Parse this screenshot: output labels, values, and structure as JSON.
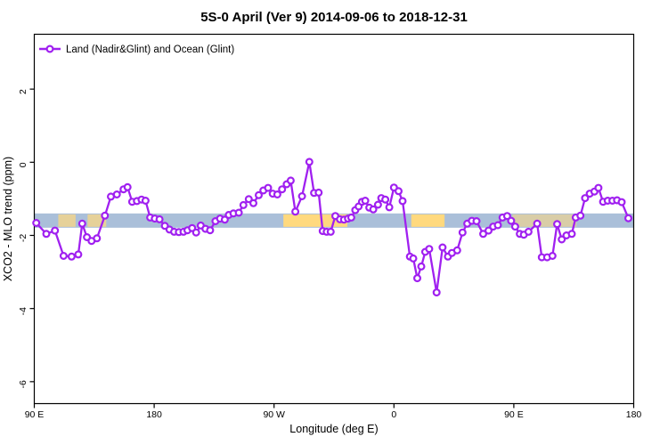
{
  "chart_data": {
    "type": "line",
    "title": "5S-0 April (Ver 9)   2014-09-06 to 2018-12-31",
    "xlabel": "Longitude (deg E)",
    "ylabel": "XCO2 - MLO trend (ppm)",
    "xlim": [
      90,
      540
    ],
    "ylim": [
      -6.6,
      3.5
    ],
    "grid": false,
    "legend_position": "top-left-inside",
    "x_ticks": [
      {
        "value": 90,
        "label": "90 E"
      },
      {
        "value": 180,
        "label": "180"
      },
      {
        "value": 270,
        "label": "90 W"
      },
      {
        "value": 360,
        "label": "0"
      },
      {
        "value": 450,
        "label": "90 E"
      },
      {
        "value": 540,
        "label": "180"
      }
    ],
    "y_ticks": [
      {
        "value": 2,
        "label": "2"
      },
      {
        "value": 0,
        "label": "0"
      },
      {
        "value": -2,
        "label": "-2"
      },
      {
        "value": -4,
        "label": "-4"
      },
      {
        "value": -6,
        "label": "-6"
      }
    ],
    "colors": {
      "series": "#A020F0",
      "marker_fill": "#FFFFFF",
      "band_ocean": "#AABFD9",
      "band_land": "#FFD97E",
      "axis": "#000000"
    },
    "background_band": {
      "note": "horizontal reference band near y = -1.4 to -1.8, ocean-blue with land-yellow segments",
      "value_range": [
        -1.4,
        -1.79
      ],
      "base_range": [
        90,
        540
      ],
      "overlays": [
        {
          "range": [
            108,
            121
          ],
          "opacity": 0.7
        },
        {
          "range": [
            130,
            144
          ],
          "opacity": 0.7
        },
        {
          "range": [
            277,
            325
          ],
          "opacity": 1.0
        },
        {
          "range": [
            373,
            398
          ],
          "opacity": 1.0
        },
        {
          "range": [
            449,
            497
          ],
          "opacity": 0.55
        }
      ]
    },
    "series": [
      {
        "name": "Land (Nadir&Glint) and Ocean (Glint)",
        "marker": "open-circle",
        "points": [
          [
            91.5,
            -1.66
          ],
          [
            99,
            -1.96
          ],
          [
            105.5,
            -1.87
          ],
          [
            112,
            -2.56
          ],
          [
            118,
            -2.58
          ],
          [
            123,
            -2.52
          ],
          [
            126,
            -1.68
          ],
          [
            129.5,
            -2.05
          ],
          [
            133,
            -2.15
          ],
          [
            137,
            -2.08
          ],
          [
            143,
            -1.46
          ],
          [
            147.5,
            -0.94
          ],
          [
            152,
            -0.88
          ],
          [
            157,
            -0.74
          ],
          [
            160,
            -0.68
          ],
          [
            163.5,
            -1.08
          ],
          [
            167,
            -1.06
          ],
          [
            170.5,
            -1.02
          ],
          [
            173.5,
            -1.05
          ],
          [
            177,
            -1.51
          ],
          [
            180.5,
            -1.54
          ],
          [
            184,
            -1.56
          ],
          [
            188,
            -1.74
          ],
          [
            191.5,
            -1.84
          ],
          [
            195,
            -1.9
          ],
          [
            198.5,
            -1.91
          ],
          [
            202,
            -1.9
          ],
          [
            205,
            -1.86
          ],
          [
            208.5,
            -1.8
          ],
          [
            211.5,
            -1.92
          ],
          [
            215,
            -1.73
          ],
          [
            218.5,
            -1.82
          ],
          [
            222,
            -1.86
          ],
          [
            226,
            -1.61
          ],
          [
            229.5,
            -1.54
          ],
          [
            233,
            -1.57
          ],
          [
            236,
            -1.44
          ],
          [
            239.5,
            -1.4
          ],
          [
            243.5,
            -1.38
          ],
          [
            247,
            -1.17
          ],
          [
            251,
            -1.01
          ],
          [
            254.5,
            -1.12
          ],
          [
            258.5,
            -0.9
          ],
          [
            262,
            -0.77
          ],
          [
            265.5,
            -0.7
          ],
          [
            269,
            -0.86
          ],
          [
            272.5,
            -0.88
          ],
          [
            276,
            -0.74
          ],
          [
            279.5,
            -0.6
          ],
          [
            282.5,
            -0.5
          ],
          [
            286,
            -1.35
          ],
          [
            291,
            -0.93
          ],
          [
            296.5,
            0.01
          ],
          [
            300,
            -0.84
          ],
          [
            303.5,
            -0.83
          ],
          [
            306.5,
            -1.88
          ],
          [
            309.5,
            -1.9
          ],
          [
            312.5,
            -1.9
          ],
          [
            316,
            -1.47
          ],
          [
            319.5,
            -1.56
          ],
          [
            322.5,
            -1.57
          ],
          [
            325.5,
            -1.54
          ],
          [
            328,
            -1.51
          ],
          [
            331,
            -1.31
          ],
          [
            333.5,
            -1.21
          ],
          [
            336,
            -1.08
          ],
          [
            338.5,
            -1.05
          ],
          [
            341.5,
            -1.24
          ],
          [
            344.5,
            -1.29
          ],
          [
            348,
            -1.16
          ],
          [
            350.5,
            -0.98
          ],
          [
            353.5,
            -1.02
          ],
          [
            356.5,
            -1.23
          ],
          [
            360,
            -0.69
          ],
          [
            363.5,
            -0.79
          ],
          [
            366.5,
            -1.06
          ],
          [
            372,
            -2.58
          ],
          [
            374.5,
            -2.63
          ],
          [
            377.5,
            -3.17
          ],
          [
            380.5,
            -2.85
          ],
          [
            383.5,
            -2.45
          ],
          [
            386.5,
            -2.37
          ],
          [
            392,
            -3.56
          ],
          [
            396.5,
            -2.33
          ],
          [
            400.5,
            -2.58
          ],
          [
            403.5,
            -2.48
          ],
          [
            407.5,
            -2.41
          ],
          [
            411.5,
            -1.92
          ],
          [
            415,
            -1.68
          ],
          [
            418.5,
            -1.6
          ],
          [
            422,
            -1.61
          ],
          [
            427,
            -1.96
          ],
          [
            431,
            -1.87
          ],
          [
            434.5,
            -1.76
          ],
          [
            438,
            -1.72
          ],
          [
            441.5,
            -1.51
          ],
          [
            445,
            -1.47
          ],
          [
            448,
            -1.6
          ],
          [
            451,
            -1.76
          ],
          [
            454.5,
            -1.96
          ],
          [
            457.5,
            -1.98
          ],
          [
            461,
            -1.9
          ],
          [
            467.5,
            -1.68
          ],
          [
            471,
            -2.6
          ],
          [
            475,
            -2.6
          ],
          [
            479,
            -2.56
          ],
          [
            482.5,
            -1.69
          ],
          [
            486,
            -2.11
          ],
          [
            489.5,
            -2.0
          ],
          [
            493.5,
            -1.96
          ],
          [
            496.5,
            -1.51
          ],
          [
            500,
            -1.46
          ],
          [
            503.5,
            -0.98
          ],
          [
            507,
            -0.86
          ],
          [
            510.5,
            -0.8
          ],
          [
            513.5,
            -0.7
          ],
          [
            517,
            -1.08
          ],
          [
            520.5,
            -1.05
          ],
          [
            524,
            -1.05
          ],
          [
            527.5,
            -1.04
          ],
          [
            531,
            -1.09
          ],
          [
            536,
            -1.53
          ]
        ]
      }
    ],
    "legend": {
      "label": "Land (Nadir&Glint) and Ocean (Glint)"
    }
  }
}
